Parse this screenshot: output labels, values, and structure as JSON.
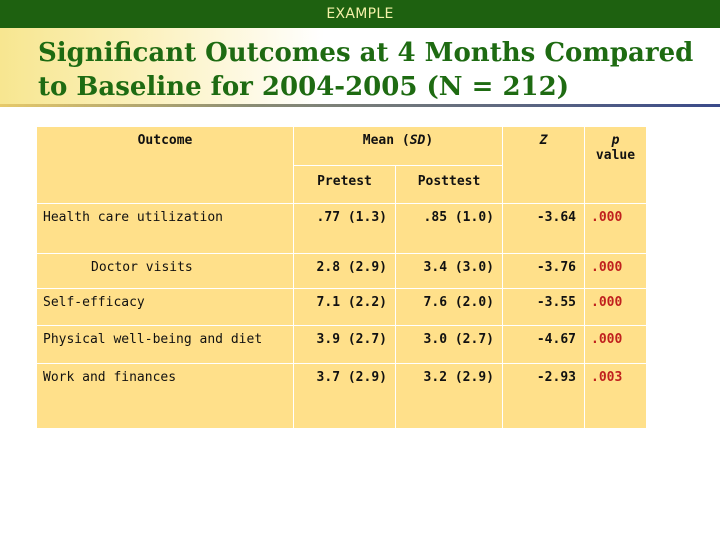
{
  "header": {
    "label": "EXAMPLE"
  },
  "title": "Significant Outcomes at 4 Months Compared to Baseline for 2004-2005 (N = 212)",
  "table": {
    "headers": {
      "outcome": "Outcome",
      "mean_prefix": "Mean (",
      "mean_sd": "SD",
      "mean_suffix": ")",
      "z": "Z",
      "p": "p",
      "p_value": "value",
      "pretest": "Pretest",
      "posttest": "Posttest"
    },
    "rows": [
      {
        "outcome": "Health care utilization",
        "pretest": ".77 (1.3)",
        "posttest": ".85 (1.0)",
        "z": "-3.64",
        "p": ".000"
      },
      {
        "outcome": "Doctor visits",
        "pretest": "2.8 (2.9)",
        "posttest": "3.4 (3.0)",
        "z": "-3.76",
        "p": ".000"
      },
      {
        "outcome": "Self-efficacy",
        "pretest": "7.1 (2.2)",
        "posttest": "7.6 (2.0)",
        "z": "-3.55",
        "p": ".000"
      },
      {
        "outcome": "Physical well-being and diet",
        "pretest": "3.9 (2.7)",
        "posttest": "3.0 (2.7)",
        "z": "-4.67",
        "p": ".000"
      },
      {
        "outcome": "Work and finances",
        "pretest": "3.7 (2.9)",
        "posttest": "3.2 (2.9)",
        "z": "-2.93",
        "p": ".003"
      }
    ]
  },
  "colors": {
    "header_bar": "#1e6110",
    "title": "#1e6b12",
    "table_fill": "#ffe08a",
    "p_value": "#c0201e"
  }
}
